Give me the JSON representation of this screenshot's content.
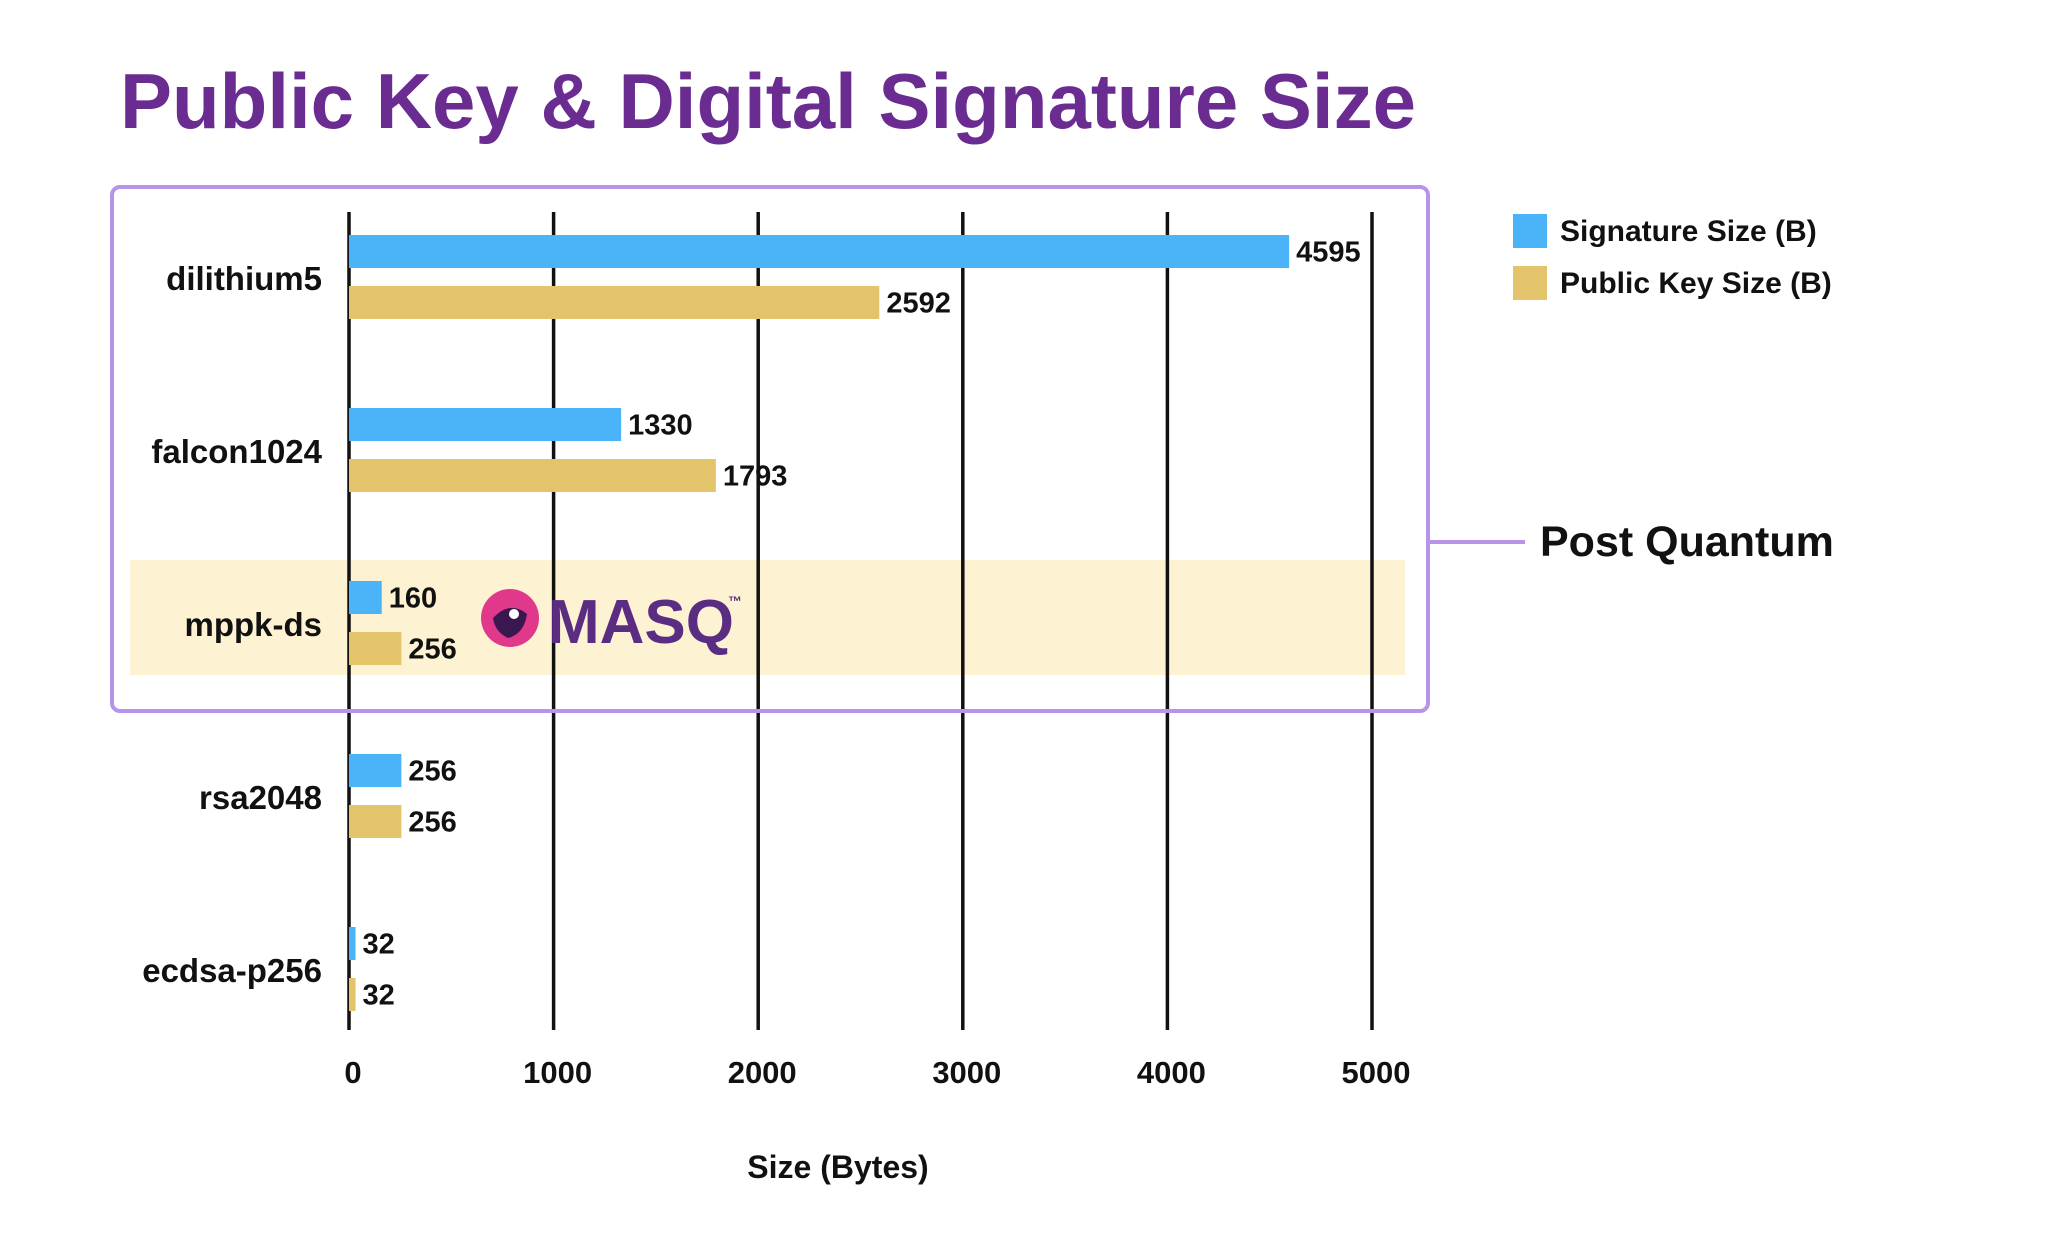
{
  "chart_data": {
    "type": "bar",
    "orientation": "horizontal",
    "title": "Public Key & Digital Signature Size",
    "xlabel": "Size (Bytes)",
    "ylabel": "",
    "xlim": [
      0,
      5200
    ],
    "x_ticks": [
      0,
      1000,
      2000,
      3000,
      4000,
      5000
    ],
    "grid": "vertical",
    "categories": [
      "dilithium5",
      "falcon1024",
      "mppk-ds",
      "rsa2048",
      "ecdsa-p256"
    ],
    "series": [
      {
        "name": "Signature Size (B)",
        "color": "#4BB4F8",
        "values": [
          4595,
          1330,
          160,
          256,
          32
        ]
      },
      {
        "name": "Public Key Size (B)",
        "color": "#E3C46A",
        "values": [
          2592,
          1793,
          256,
          256,
          32
        ]
      }
    ],
    "legend_position": "top-right",
    "group_annotation": {
      "label": "Post Quantum",
      "categories": [
        "dilithium5",
        "falcon1024",
        "mppk-ds"
      ],
      "color": "#B794E8"
    },
    "highlight": {
      "category": "mppk-ds",
      "color": "#FDF3D2",
      "logo": {
        "text": "MASQ",
        "mark": "™",
        "icon": "masq-logo-icon",
        "color": "#5B2D82",
        "accent": "#E0388A"
      }
    },
    "title_color": "#6A2C91"
  }
}
